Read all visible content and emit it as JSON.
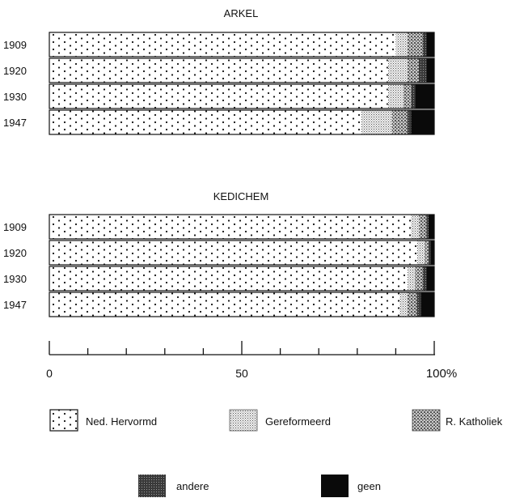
{
  "chart_data": [
    {
      "type": "bar",
      "stacked": true,
      "orientation": "horizontal",
      "title": "ARKEL",
      "categories": [
        "1909",
        "1920",
        "1930",
        "1947"
      ],
      "series": [
        {
          "name": "Ned. Hervormd",
          "values": [
            90,
            88,
            88,
            81
          ]
        },
        {
          "name": "Gereformeerd",
          "values": [
            3,
            5,
            4,
            8
          ]
        },
        {
          "name": "R. Katholiek",
          "values": [
            4,
            3,
            2,
            4
          ]
        },
        {
          "name": "andere",
          "values": [
            1,
            2,
            1,
            1
          ]
        },
        {
          "name": "geen",
          "values": [
            2,
            2,
            5,
            6
          ]
        }
      ],
      "xlim": [
        0,
        100
      ]
    },
    {
      "type": "bar",
      "stacked": true,
      "orientation": "horizontal",
      "title": "KEDICHEM",
      "categories": [
        "1909",
        "1920",
        "1930",
        "1947"
      ],
      "series": [
        {
          "name": "Ned. Hervormd",
          "values": [
            94,
            95.5,
            93,
            91
          ]
        },
        {
          "name": "Gereformeerd",
          "values": [
            2,
            2,
            2,
            2
          ]
        },
        {
          "name": "R. Katholiek",
          "values": [
            2,
            1,
            2,
            2.5
          ]
        },
        {
          "name": "andere",
          "values": [
            0.5,
            0.5,
            1,
            1
          ]
        },
        {
          "name": "geen",
          "values": [
            1.5,
            1,
            2,
            3.5
          ]
        }
      ],
      "xlim": [
        0,
        100
      ]
    }
  ],
  "axis": {
    "ticks": [
      0,
      10,
      20,
      30,
      40,
      50,
      60,
      70,
      80,
      90,
      100
    ],
    "tick_labels": [
      {
        "value": 0,
        "text": "0"
      },
      {
        "value": 50,
        "text": "50"
      },
      {
        "value": 100,
        "text": "100%"
      }
    ]
  },
  "legend": {
    "items": [
      {
        "name": "Ned. Hervormd",
        "pattern": "dots"
      },
      {
        "name": "Gereformeerd",
        "pattern": "fine-stipple"
      },
      {
        "name": "R. Katholiek",
        "pattern": "coarse-stipple"
      },
      {
        "name": "andere",
        "pattern": "dark-stipple"
      },
      {
        "name": "geen",
        "pattern": "solid-black"
      }
    ]
  }
}
